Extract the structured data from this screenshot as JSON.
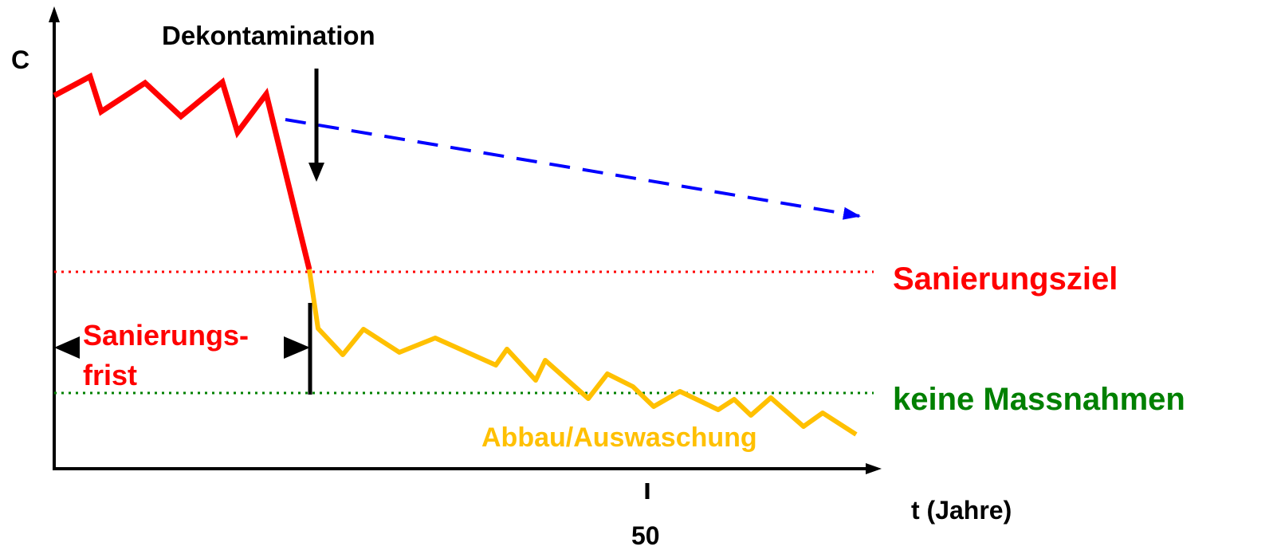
{
  "axis": {
    "y_label": "C",
    "x_label": "t (Jahre)",
    "x_tick_label": "50"
  },
  "annotations": {
    "dekontamination": "Dekontamination",
    "sanierungsziel": "Sanierungsziel",
    "keine_massnahmen": "keine Massnahmen",
    "sanierungsfrist_line1": "Sanierungs-",
    "sanierungsfrist_line2": "frist",
    "abbau_auswaschung": "Abbau/Auswaschung"
  },
  "colors": {
    "axis": "#000000",
    "contamination_curve": "#ff0000",
    "degradation_curve": "#ffc000",
    "no_measures_trend": "#0000ff",
    "target_line": "#ff0000",
    "no_measures_line": "#008000",
    "label_red": "#ff0000",
    "label_green": "#008000",
    "label_yellow": "#ffc000",
    "label_black": "#000000"
  }
}
